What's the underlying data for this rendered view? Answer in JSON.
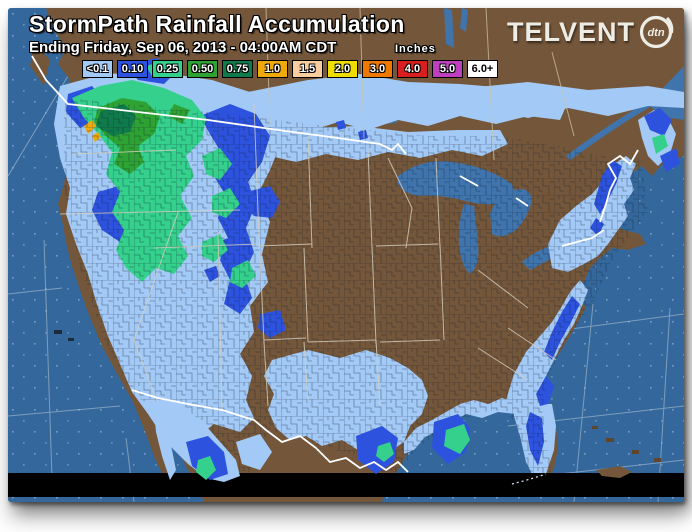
{
  "header": {
    "title": "StormPath Rainfall Accumulation",
    "subtitle": "Ending Friday, Sep 06, 2013 - 04:00AM CDT",
    "units_label": "Inches"
  },
  "brand": {
    "name": "TELVENT",
    "badge_text": "dtn"
  },
  "legend": {
    "items": [
      {
        "label": "<0.1",
        "color": "#A3CAF6",
        "text": "#FFFFFF"
      },
      {
        "label": "0.10",
        "color": "#2C52DE",
        "text": "#FFFFFF"
      },
      {
        "label": "0.25",
        "color": "#34D08C",
        "text": "#FFFFFF"
      },
      {
        "label": "0.50",
        "color": "#2EA233",
        "text": "#FFFFFF"
      },
      {
        "label": "0.75",
        "color": "#0F7A4A",
        "text": "#FFFFFF"
      },
      {
        "label": "1.0",
        "color": "#EEA90A",
        "text": "#FFFFFF"
      },
      {
        "label": "1.5",
        "color": "#FACC9E",
        "text": "#FFFFFF"
      },
      {
        "label": "2.0",
        "color": "#EEDE00",
        "text": "#FFFFFF"
      },
      {
        "label": "3.0",
        "color": "#EE7800",
        "text": "#FFFFFF"
      },
      {
        "label": "4.0",
        "color": "#D81E1E",
        "text": "#FFFFFF"
      },
      {
        "label": "5.0",
        "color": "#BE40BE",
        "text": "#FFFFFF"
      },
      {
        "label": "6.0+",
        "color": "#FFFFFF",
        "text": "#000000"
      }
    ]
  },
  "map": {
    "ocean_color": "#34689C",
    "land_color": "#74573A",
    "lake_color": "#4074AC",
    "county_line_color": "#101C33",
    "state_line_color": "#D6CFC0",
    "province_line_color": "#CCC2A6",
    "intl_border_color": "#FFFFFF",
    "graticule_color": "#C8D2DC",
    "cutoff_band_color": "#000000",
    "keys_dotted_color": "#CFE0F0",
    "precip_regions": [
      {
        "region": "Pacific Northwest (W Washington / NW Oregon)",
        "peak_inches": "1.0"
      },
      {
        "region": "Idaho panhandle / W Montana",
        "peak_inches": "0.10"
      },
      {
        "region": "Great Basin - Nevada / Utah",
        "peak_inches": "0.10"
      },
      {
        "region": "N Montana / North Dakota / N Minnesota border",
        "peak_inches": "0.10"
      },
      {
        "region": "New England / Maine coast",
        "peak_inches": "0.10"
      },
      {
        "region": "Canadian Maritimes (Nova Scotia / New Brunswick)",
        "peak_inches": "0.25"
      },
      {
        "region": "Southeast Atlantic coast (GA / SC / NC)",
        "peak_inches": "0.10"
      },
      {
        "region": "Florida peninsula",
        "peak_inches": "0.10"
      },
      {
        "region": "Gulf Coast (TX-LA-MS-AL-FL panhandle)",
        "peak_inches": "<0.1"
      },
      {
        "region": "South / Central Texas",
        "peak_inches": "<0.1"
      },
      {
        "region": "Northwest Mexico",
        "peak_inches": "0.25"
      }
    ]
  }
}
